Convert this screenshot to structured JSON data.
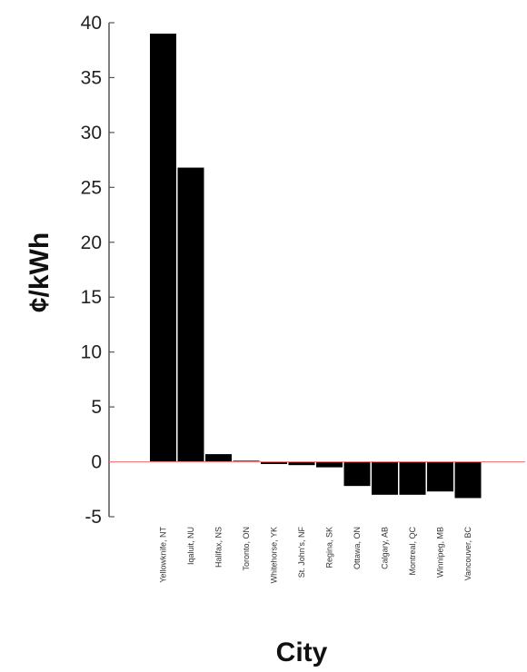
{
  "chart_data": {
    "type": "bar",
    "title": "",
    "xlabel": "City",
    "ylabel": "¢/kWh",
    "ylim": [
      -5,
      40
    ],
    "yticks": [
      -5,
      0,
      5,
      10,
      15,
      20,
      25,
      30,
      35,
      40
    ],
    "grid": false,
    "categories": [
      "Yellowknife, NT",
      "Iqaluit, NU",
      "Halifax, NS",
      "Toronto, ON",
      "Whitehorse, YK",
      "St. John's, NF",
      "Regina, SK",
      "Ottawa, ON",
      "Calgary, AB",
      "Montreal, QC",
      "Winnipeg, MB",
      "Vancouver, BC"
    ],
    "values": [
      39.0,
      26.8,
      0.7,
      0.1,
      -0.2,
      -0.3,
      -0.5,
      -2.2,
      -3.0,
      -3.0,
      -2.7,
      -3.3
    ],
    "colors": {
      "bar": "#000000",
      "zero_line": "#f08080",
      "axis": "#555555"
    }
  }
}
